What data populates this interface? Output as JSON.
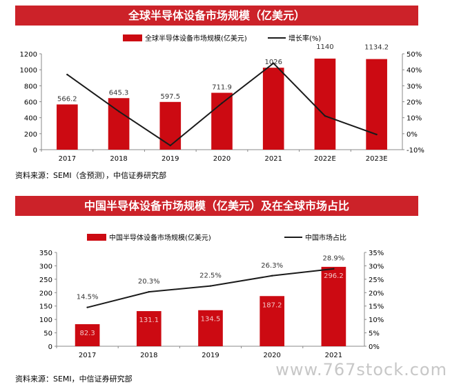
{
  "chart1": {
    "banner_title": "全球半导体设备市场规模（亿美元）",
    "source": "资料来源：SEMI（含预测），中信证券研究部"
  },
  "chart2": {
    "banner_title": "中国半导体设备市场规模（亿美元）及在全球市场占比",
    "source": "资料来源：SEMI，中信证券研究部"
  },
  "watermark": "www.767stock.com",
  "colors": {
    "bar": "#cc0a12",
    "line": "#1a1a1a",
    "banner": "#cc2229"
  },
  "chart_data": [
    {
      "type": "bar",
      "categories": [
        "2017",
        "2018",
        "2019",
        "2020",
        "2021",
        "2022E",
        "2023E"
      ],
      "series": [
        {
          "name": "全球半导体设备市场规模(亿美元)",
          "type": "bar",
          "axis": "left",
          "values": [
            566.2,
            645.3,
            597.5,
            711.9,
            1026,
            1140,
            1134.2
          ],
          "labels": [
            "566.2",
            "645.3",
            "597.5",
            "711.9",
            "1026",
            "1140",
            "1134.2"
          ]
        },
        {
          "name": "增长率(%)",
          "type": "line",
          "axis": "right",
          "values": [
            37.0,
            14.0,
            -7.4,
            19.1,
            44.1,
            11.1,
            -0.5
          ]
        }
      ],
      "ylim_left": [
        0,
        1200
      ],
      "yticks_left": [
        "0",
        "200",
        "400",
        "600",
        "800",
        "1000",
        "1200"
      ],
      "ylim_right": [
        -10,
        50
      ],
      "yticks_right": [
        "-10%",
        "0%",
        "10%",
        "20%",
        "30%",
        "40%",
        "50%"
      ],
      "legend": "top",
      "grid": false
    },
    {
      "type": "bar",
      "categories": [
        "2017",
        "2018",
        "2019",
        "2020",
        "2021"
      ],
      "series": [
        {
          "name": "中国半导体设备市场规模(亿美元)",
          "type": "bar",
          "axis": "left",
          "values": [
            82.3,
            131.1,
            134.5,
            187.2,
            296.2
          ],
          "labels": [
            "82.3",
            "131.1",
            "134.5",
            "187.2",
            "296.2"
          ]
        },
        {
          "name": "中国市场占比",
          "type": "line",
          "axis": "right",
          "values": [
            14.5,
            20.3,
            22.5,
            26.3,
            28.9
          ],
          "labels": [
            "14.5%",
            "20.3%",
            "22.5%",
            "26.3%",
            "28.9%"
          ]
        }
      ],
      "ylim_left": [
        0,
        350
      ],
      "yticks_left": [
        "0",
        "50",
        "100",
        "150",
        "200",
        "250",
        "300",
        "350"
      ],
      "ylim_right": [
        0,
        35
      ],
      "yticks_right": [
        "0%",
        "5%",
        "10%",
        "15%",
        "20%",
        "25%",
        "30%",
        "35%"
      ],
      "legend": "top",
      "grid": false
    }
  ]
}
